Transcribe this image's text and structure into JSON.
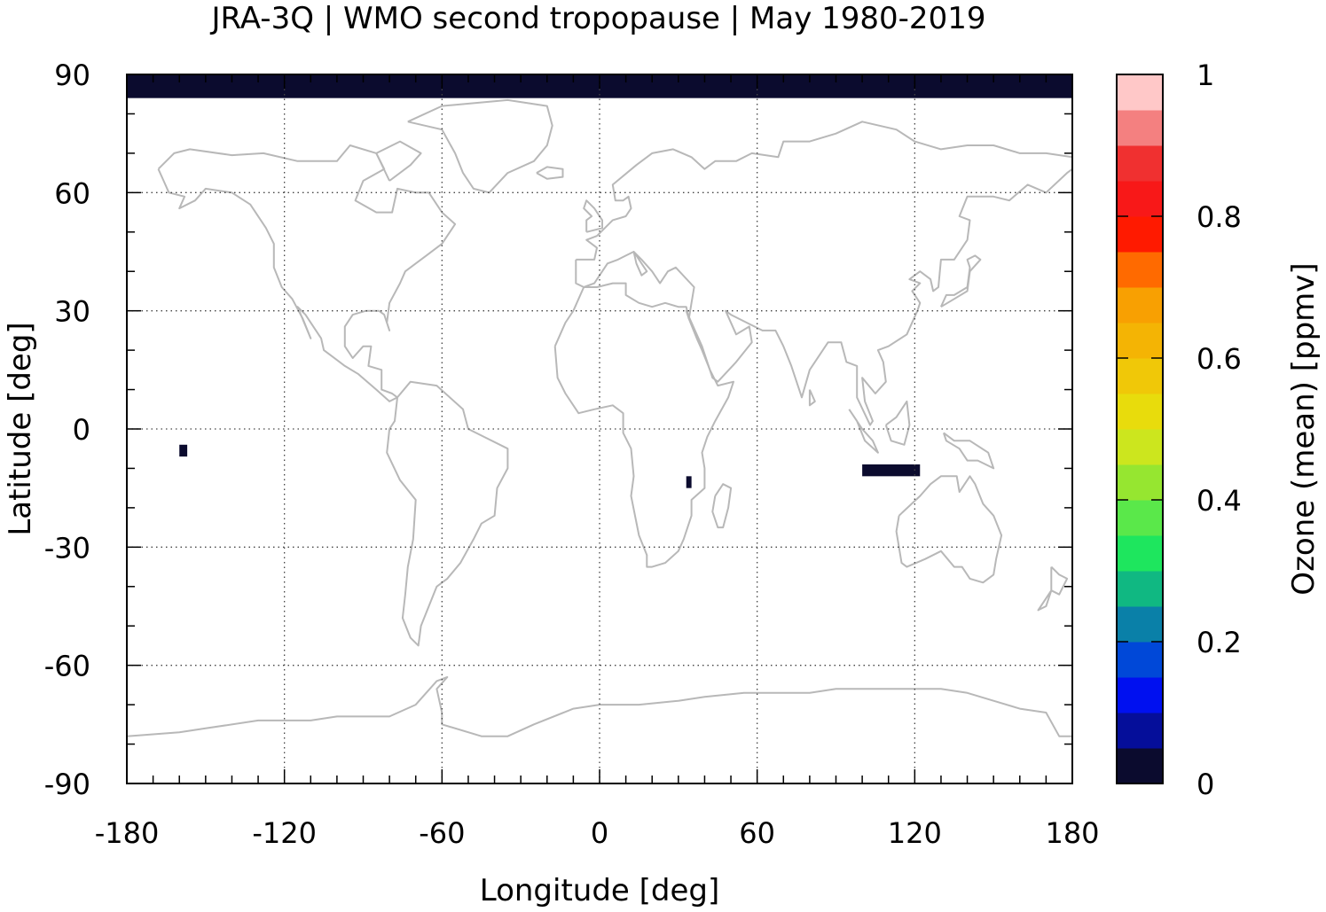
{
  "chart_data": {
    "type": "heatmap",
    "title": "JRA-3Q | WMO second tropopause | May 1980-2019",
    "xlabel": "Longitude [deg]",
    "ylabel": "Latitude [deg]",
    "xlim": [
      -180,
      180
    ],
    "ylim": [
      -90,
      90
    ],
    "x_ticks": [
      -180,
      -120,
      -60,
      0,
      60,
      120,
      180
    ],
    "y_ticks": [
      90,
      60,
      30,
      0,
      -30,
      -60,
      -90
    ],
    "grid": true,
    "colorbar": {
      "label": "Ozone (mean) [ppmv]",
      "range": [
        0,
        1
      ],
      "ticks": [
        0,
        0.2,
        0.4,
        0.6,
        0.8,
        1
      ],
      "colors": [
        "#0b0b2e",
        "#050e9a",
        "#0010f0",
        "#0048d8",
        "#0a80a8",
        "#10b882",
        "#1ee65e",
        "#5ae84a",
        "#96e630",
        "#cce61e",
        "#e8dc0c",
        "#f0c808",
        "#f4b404",
        "#f8a002",
        "#ff6a00",
        "#ff1a00",
        "#f81818",
        "#f03030",
        "#f48080",
        "#ffc8c8"
      ]
    },
    "data_regions": [
      {
        "description": "Arctic band near 90N (lowest colour bin)",
        "lon": [
          -180,
          180
        ],
        "lat": [
          84,
          90
        ],
        "value": 0.02
      },
      {
        "description": "central Pacific speck",
        "lon": [
          -160,
          -157
        ],
        "lat": [
          -4,
          -7
        ],
        "value": 0.02
      },
      {
        "description": "East Africa speck",
        "lon": [
          33,
          35
        ],
        "lat": [
          -12,
          -15
        ],
        "value": 0.02
      },
      {
        "description": "Indonesia specks",
        "lon": [
          100,
          122
        ],
        "lat": [
          -9,
          -12
        ],
        "value": 0.02
      }
    ]
  }
}
